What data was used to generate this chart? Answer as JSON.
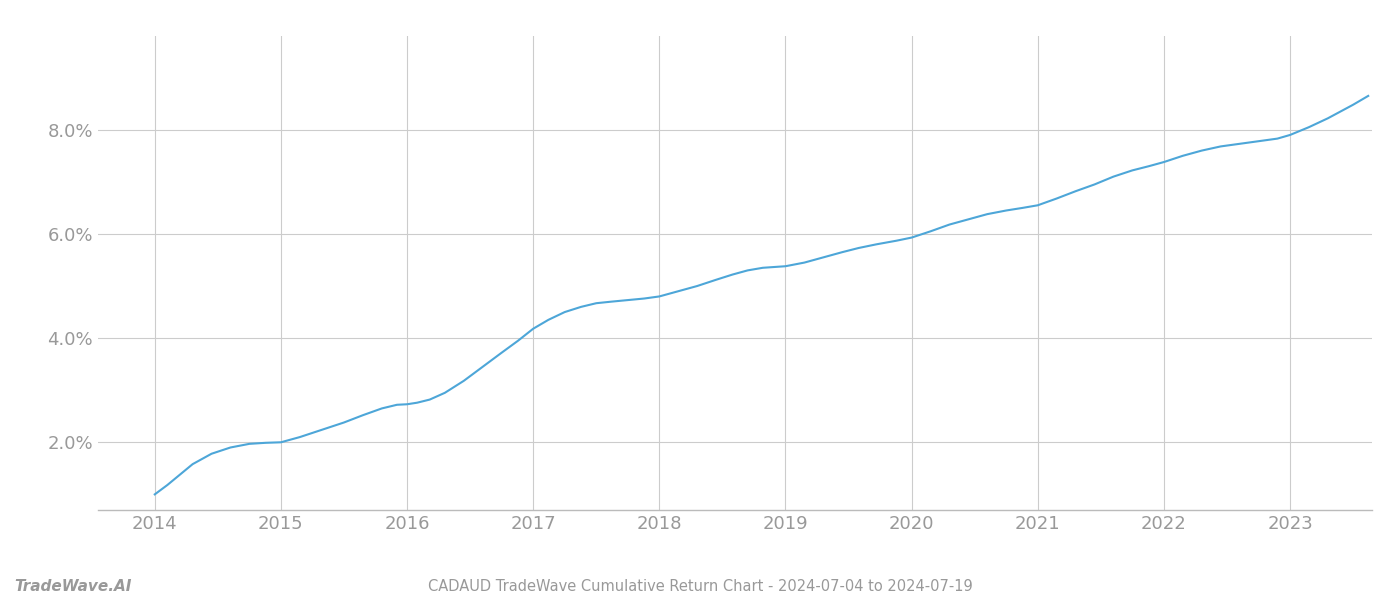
{
  "title": "CADAUD TradeWave Cumulative Return Chart - 2024-07-04 to 2024-07-19",
  "watermark": "TradeWave.AI",
  "line_color": "#4da6d8",
  "background_color": "#ffffff",
  "grid_color": "#cccccc",
  "axis_label_color": "#999999",
  "x_years": [
    2014,
    2015,
    2016,
    2017,
    2018,
    2019,
    2020,
    2021,
    2022,
    2023
  ],
  "y_ticks": [
    2.0,
    4.0,
    6.0,
    8.0
  ],
  "xlim": [
    2013.55,
    2023.65
  ],
  "ylim": [
    0.7,
    9.8
  ],
  "data_x": [
    2014.0,
    2014.1,
    2014.2,
    2014.3,
    2014.45,
    2014.6,
    2014.75,
    2014.88,
    2015.0,
    2015.15,
    2015.3,
    2015.5,
    2015.65,
    2015.8,
    2015.92,
    2016.0,
    2016.08,
    2016.18,
    2016.3,
    2016.45,
    2016.6,
    2016.75,
    2016.88,
    2017.0,
    2017.12,
    2017.25,
    2017.38,
    2017.5,
    2017.62,
    2017.75,
    2017.88,
    2018.0,
    2018.15,
    2018.3,
    2018.45,
    2018.58,
    2018.7,
    2018.82,
    2019.0,
    2019.15,
    2019.3,
    2019.45,
    2019.58,
    2019.72,
    2019.88,
    2020.0,
    2020.15,
    2020.3,
    2020.45,
    2020.6,
    2020.75,
    2020.88,
    2021.0,
    2021.15,
    2021.3,
    2021.45,
    2021.6,
    2021.75,
    2021.88,
    2022.0,
    2022.15,
    2022.3,
    2022.45,
    2022.6,
    2022.75,
    2022.9,
    2023.0,
    2023.15,
    2023.3,
    2023.5,
    2023.62
  ],
  "data_y": [
    1.0,
    1.18,
    1.38,
    1.58,
    1.78,
    1.9,
    1.97,
    1.99,
    2.0,
    2.1,
    2.22,
    2.38,
    2.52,
    2.65,
    2.72,
    2.73,
    2.76,
    2.82,
    2.95,
    3.18,
    3.45,
    3.72,
    3.95,
    4.18,
    4.35,
    4.5,
    4.6,
    4.67,
    4.7,
    4.73,
    4.76,
    4.8,
    4.9,
    5.0,
    5.12,
    5.22,
    5.3,
    5.35,
    5.38,
    5.45,
    5.55,
    5.65,
    5.73,
    5.8,
    5.87,
    5.93,
    6.05,
    6.18,
    6.28,
    6.38,
    6.45,
    6.5,
    6.55,
    6.68,
    6.82,
    6.95,
    7.1,
    7.22,
    7.3,
    7.38,
    7.5,
    7.6,
    7.68,
    7.73,
    7.78,
    7.83,
    7.9,
    8.05,
    8.22,
    8.48,
    8.65
  ]
}
